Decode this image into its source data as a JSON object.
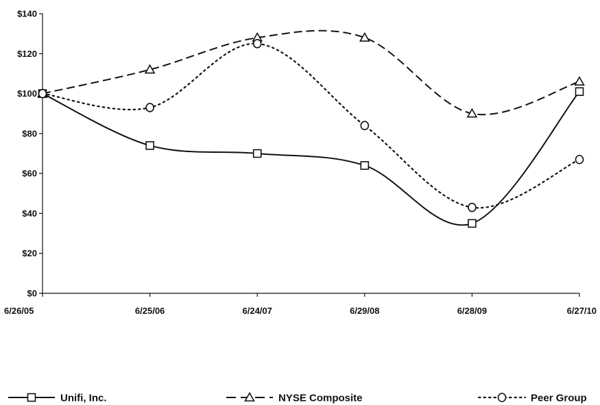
{
  "chart_data": {
    "type": "line",
    "title": "",
    "xlabel": "",
    "ylabel": "",
    "categories": [
      "6/26/05",
      "6/25/06",
      "6/24/07",
      "6/29/08",
      "6/28/09",
      "6/27/10"
    ],
    "ylim": [
      0,
      140
    ],
    "yticks": [
      0,
      20,
      40,
      60,
      80,
      100,
      120,
      140
    ],
    "ytick_labels": [
      "$0",
      "$20",
      "$40",
      "$60",
      "$80",
      "$100",
      "$120",
      "$140"
    ],
    "grid": false,
    "legend_position": "bottom",
    "series": [
      {
        "name": "Unifi, Inc.",
        "values": [
          100,
          74,
          70,
          64,
          35,
          101
        ],
        "marker": "square",
        "line_style": "solid",
        "color": "#111111"
      },
      {
        "name": "NYSE Composite",
        "values": [
          100,
          112,
          128,
          128,
          90,
          106
        ],
        "marker": "triangle",
        "line_style": "dashed",
        "color": "#111111"
      },
      {
        "name": "Peer Group",
        "values": [
          100,
          93,
          125,
          84,
          43,
          67
        ],
        "marker": "circle",
        "line_style": "dotted",
        "color": "#111111"
      }
    ]
  }
}
